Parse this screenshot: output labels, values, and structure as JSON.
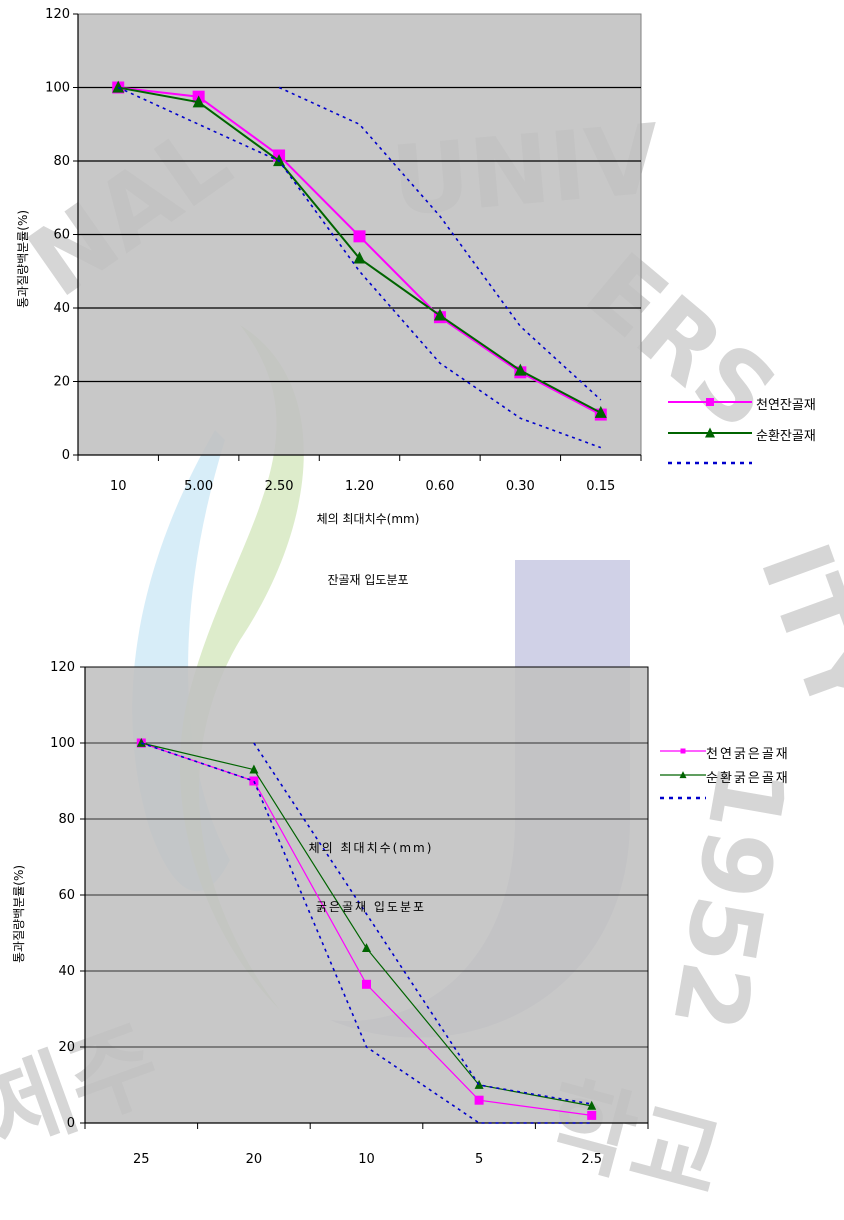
{
  "chart_data": [
    {
      "type": "line",
      "caption": "잔골재 입도분포",
      "xlabel": "체의 최대치수(mm)",
      "ylabel": "통과질량백분률(%)",
      "categories": [
        "10",
        "5.00",
        "2.50",
        "1.20",
        "0.60",
        "0.30",
        "0.15"
      ],
      "ylim": [
        0,
        120
      ],
      "yticks": [
        0,
        20,
        40,
        60,
        80,
        100,
        120
      ],
      "grid": true,
      "legend_position": "right",
      "series": [
        {
          "name": "천연잔골재",
          "color": "#ff00ff",
          "marker": "square",
          "values": [
            100,
            97.5,
            81.5,
            59.5,
            37.5,
            22.5,
            11
          ]
        },
        {
          "name": "순환잔골재",
          "color": "#006400",
          "marker": "triangle",
          "values": [
            100,
            96,
            80,
            53.5,
            38,
            23,
            11.5
          ]
        },
        {
          "name": "",
          "color": "#0000cc",
          "style": "dotted",
          "values": [
            null,
            null,
            100,
            90,
            65,
            35,
            15
          ]
        },
        {
          "name": "",
          "color": "#0000cc",
          "style": "dotted",
          "values": [
            100,
            90,
            80,
            50,
            25,
            10,
            2
          ]
        }
      ]
    },
    {
      "type": "line",
      "caption": "굵은골재 입도분포",
      "xlabel": "체의 최대치수(mm)",
      "ylabel": "통과질량백분률(%)",
      "categories": [
        "25",
        "20",
        "10",
        "5",
        "2.5"
      ],
      "ylim": [
        0,
        120
      ],
      "yticks": [
        0,
        20,
        40,
        60,
        80,
        100,
        120
      ],
      "grid": true,
      "legend_position": "right",
      "series": [
        {
          "name": "천연굵은골재",
          "color": "#ff00ff",
          "marker": "square",
          "values": [
            100,
            90,
            36.5,
            6,
            2
          ]
        },
        {
          "name": "순환굵은골재",
          "color": "#006400",
          "marker": "triangle",
          "values": [
            100,
            93,
            46,
            10,
            4.5
          ]
        },
        {
          "name": "",
          "color": "#0000cc",
          "style": "dotted",
          "values": [
            null,
            100,
            55,
            10,
            5
          ]
        },
        {
          "name": "",
          "color": "#0000cc",
          "style": "dotted",
          "values": [
            100,
            90,
            20,
            0,
            0
          ]
        }
      ]
    }
  ]
}
